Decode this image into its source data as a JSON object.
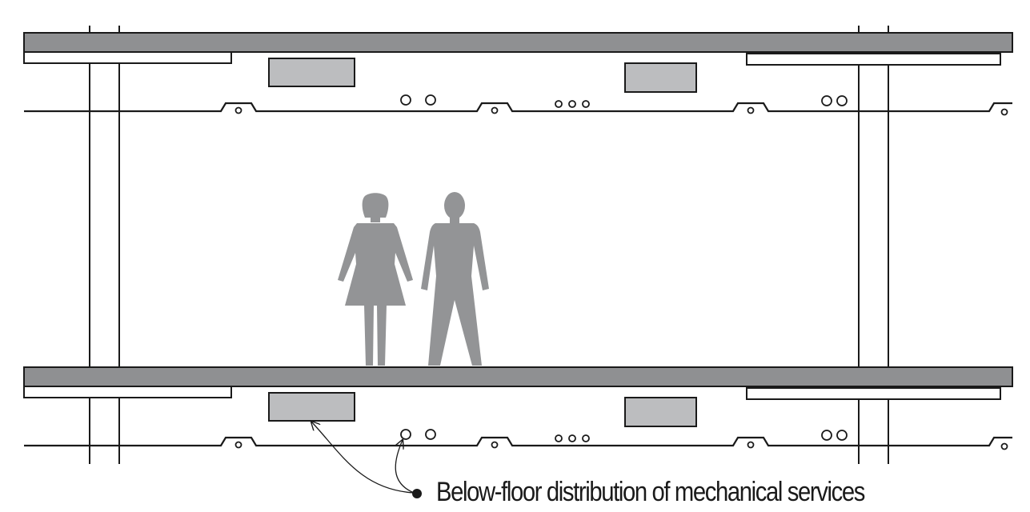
{
  "annotation": {
    "label": "Below-floor distribution of mechanical services"
  },
  "colors": {
    "slab": "#8f9092",
    "duct": "#bcbdbf",
    "figure": "#939496",
    "line": "#1a1a1a"
  }
}
